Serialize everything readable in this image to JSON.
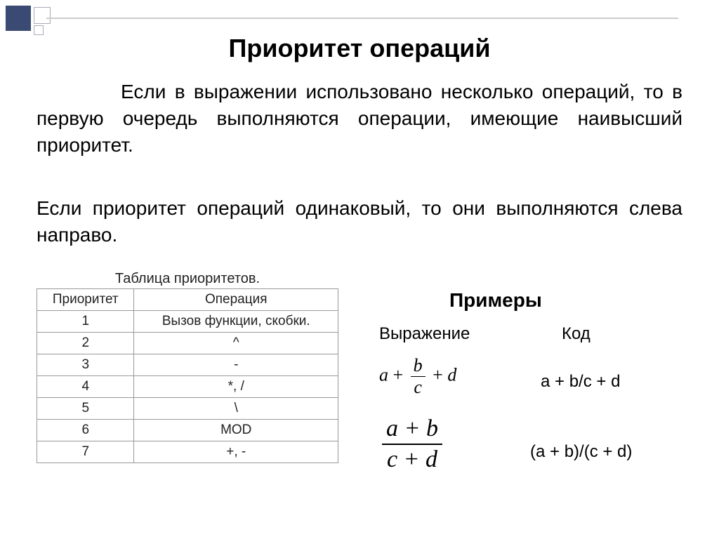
{
  "title": "Приоритет операций",
  "paragraph1": "Если в выражении использовано несколько операций, то в первую очередь выполняются операции, имеющие наивысший приоритет.",
  "paragraph2": "Если приоритет операций одинаковый, то они выполняются слева направо.",
  "table": {
    "caption": "Таблица приоритетов.",
    "headers": [
      "Приоритет",
      "Операция"
    ],
    "rows": [
      [
        "1",
        "Вызов функции, скобки."
      ],
      [
        "2",
        "^"
      ],
      [
        "3",
        "-"
      ],
      [
        "4",
        "*, /"
      ],
      [
        "5",
        "\\"
      ],
      [
        "6",
        "MOD"
      ],
      [
        "7",
        "+, -"
      ]
    ]
  },
  "examples": {
    "title": "Примеры",
    "col_expr": "Выражение",
    "col_code": "Код",
    "items": [
      {
        "expr_left": "a",
        "expr_plus1": " + ",
        "expr_num": "b",
        "expr_den": "c",
        "expr_plus2": " + ",
        "expr_right": "d",
        "code": "a + b/c + d"
      },
      {
        "expr_num": "a + b",
        "expr_den": "c + d",
        "code": "(a + b)/(c + d)"
      }
    ]
  },
  "colors": {
    "accent": "#3b4a73",
    "border": "#999999",
    "text": "#000000",
    "bg": "#ffffff"
  }
}
